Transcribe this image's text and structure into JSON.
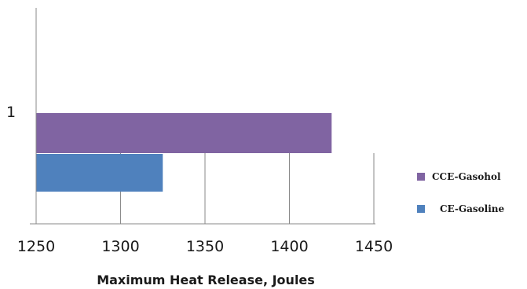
{
  "chart_data": {
    "type": "bar",
    "orientation": "horizontal",
    "categories": [
      "1"
    ],
    "series": [
      {
        "name": "CCE-Gasohol",
        "values": [
          1425
        ],
        "color": "#8064A2"
      },
      {
        "name": "CE-Gasoline",
        "values": [
          1325
        ],
        "color": "#4F81BD"
      }
    ],
    "xlabel": "Maximum Heat Release, Joules",
    "ylabel": "",
    "xlim": [
      1250,
      1450
    ],
    "xticks": [
      "1250",
      "1300",
      "1350",
      "1400",
      "1450"
    ],
    "grid": "vertical",
    "legend": "right"
  }
}
